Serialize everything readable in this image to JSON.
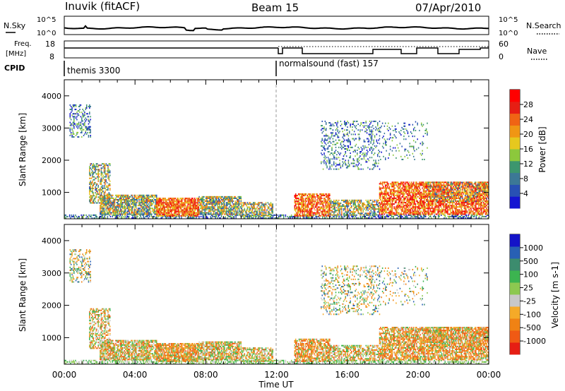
{
  "header": {
    "station": "Inuvik (fitACF)",
    "beam": "Beam 15",
    "date": "07/Apr/2010"
  },
  "noise_panel": {
    "left_label": "N.Sky",
    "right_label": "N.Search",
    "left_ticks": [
      "10^5",
      "10^0"
    ],
    "right_ticks": [
      "10^5",
      "10^0"
    ]
  },
  "freq_panel": {
    "left_label_1": "Freq.",
    "left_label_2": "[MHz]",
    "left_ticks": [
      "18",
      "8"
    ],
    "right_label": "Nave",
    "right_ticks": [
      "60",
      "0"
    ]
  },
  "cpid": {
    "label": "CPID",
    "mode_1": "themis 3300",
    "mode_2": "normalsound (fast) 157"
  },
  "x_axis": {
    "label": "Time UT",
    "ticks": [
      "00:00",
      "04:00",
      "08:00",
      "12:00",
      "16:00",
      "20:00",
      "00:00"
    ]
  },
  "colors": {
    "power_scale": [
      "#1414d2",
      "#2850b4",
      "#3c7896",
      "#3c966e",
      "#8cc83c",
      "#e6c81e",
      "#f09614",
      "#f06414",
      "#e61e14",
      "#ff0000"
    ],
    "velocity_scale": [
      "#e61e14",
      "#f05a14",
      "#f08214",
      "#f5aa28",
      "#c8c8c8",
      "#8cc850",
      "#3cb450",
      "#3c8c6e",
      "#2860b4",
      "#1414c8"
    ]
  },
  "chart_data": [
    {
      "type": "heatmap",
      "panel": "power",
      "xlabel": "",
      "ylabel": "Slant Range [km]",
      "yticks": [
        "1000",
        "2000",
        "3000",
        "4000"
      ],
      "ylim": [
        180,
        4500
      ],
      "xlim": [
        0,
        24
      ],
      "colorbar_label": "Power [dB]",
      "colorbar_ticks": [
        "4",
        "8",
        "12",
        "16",
        "20",
        "24",
        "28"
      ],
      "clim": [
        0,
        30
      ]
    },
    {
      "type": "heatmap",
      "panel": "velocity",
      "xlabel": "Time UT",
      "ylabel": "Slant Range [km]",
      "yticks": [
        "1000",
        "2000",
        "3000",
        "4000"
      ],
      "ylim": [
        180,
        4500
      ],
      "xlim": [
        0,
        24
      ],
      "colorbar_label": "Velocity [m s-1]",
      "colorbar_ticks": [
        "1000",
        "500",
        "100",
        "25",
        "-25",
        "-100",
        "-500",
        "-1000"
      ]
    }
  ]
}
